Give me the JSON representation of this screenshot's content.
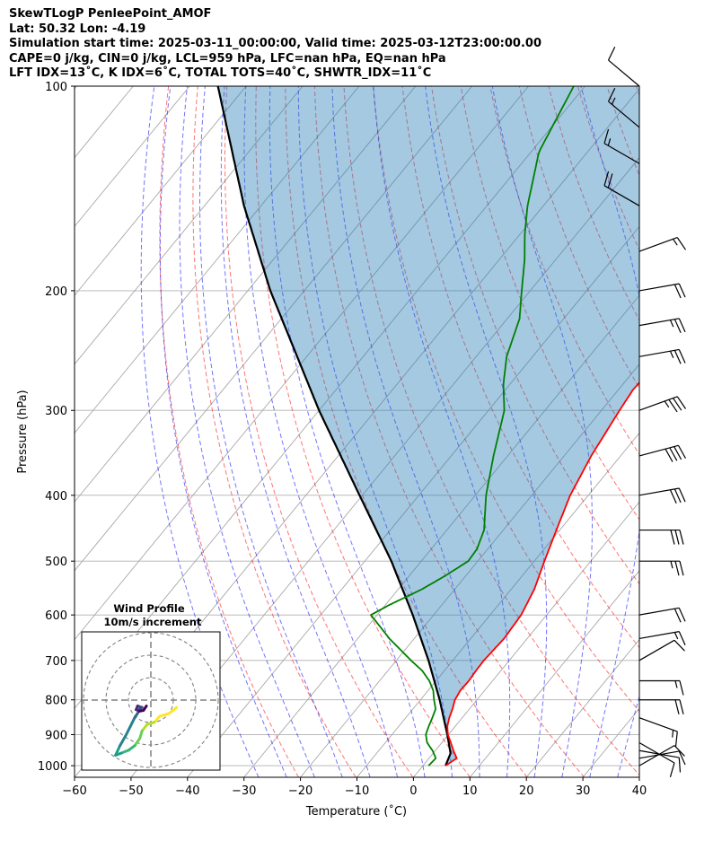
{
  "header": {
    "line1": "SkewTLogP PenleePoint_AMOF",
    "line2": "Lat: 50.32   Lon: -4.19",
    "line3": "Simulation start time: 2025-03-11_00:00:00, Valid time: 2025-03-12T23:00:00.00",
    "line4": "CAPE=0 j/kg, CIN=0 j/kg, LCL=959 hPa, LFC=nan hPa, EQ=nan hPa",
    "line5": "LFT IDX=13$^\\circ$C, K IDX=6$^\\circ$C, TOTAL TOTS=40$^\\circ$C, SHWTR_IDX=11$^\\circ$C"
  },
  "header_display": {
    "line5": "LFT IDX=13˚C, K IDX=6˚C, TOTAL TOTS=40˚C, SHWTR_IDX=11˚C"
  },
  "chart_data": {
    "type": "skew-t log-p",
    "xlabel": "Temperature (˚C)",
    "ylabel": "Pressure (hPa)",
    "xlim": [
      -60,
      40
    ],
    "ylim": [
      1040,
      100
    ],
    "x_ticks": [
      "−60",
      "−50",
      "−40",
      "−30",
      "−20",
      "−10",
      "0",
      "10",
      "20",
      "30",
      "40"
    ],
    "y_ticks": [
      "100",
      "200",
      "300",
      "400",
      "500",
      "600",
      "700",
      "800",
      "900",
      "1000"
    ],
    "y_tick_values": [
      100,
      200,
      300,
      400,
      500,
      600,
      700,
      800,
      900,
      1000
    ],
    "grid": true,
    "temperature": {
      "color": "#ff0000",
      "points": [
        [
          1000,
          4.0
        ],
        [
          975,
          4.9
        ],
        [
          950,
          3.2
        ],
        [
          925,
          1.6
        ],
        [
          900,
          -0.1
        ],
        [
          875,
          -1.4
        ],
        [
          850,
          -2.3
        ],
        [
          825,
          -3.0
        ],
        [
          800,
          -3.9
        ],
        [
          775,
          -4.3
        ],
        [
          750,
          -4.2
        ],
        [
          725,
          -4.4
        ],
        [
          700,
          -4.5
        ],
        [
          650,
          -4.1
        ],
        [
          600,
          -4.5
        ],
        [
          550,
          -5.9
        ],
        [
          500,
          -8.2
        ],
        [
          450,
          -10.6
        ],
        [
          400,
          -13.2
        ],
        [
          350,
          -15.2
        ],
        [
          300,
          -16.8
        ],
        [
          280,
          -17.4
        ],
        [
          250,
          -17.0
        ],
        [
          220,
          -17.2
        ],
        [
          200,
          -17.5
        ],
        [
          180,
          -17.2
        ],
        [
          150,
          -16.5
        ],
        [
          125,
          -14.8
        ],
        [
          100,
          -13.5
        ]
      ]
    },
    "dewpoint": {
      "color": "#008000",
      "points": [
        [
          1000,
          1.0
        ],
        [
          975,
          1.2
        ],
        [
          950,
          -0.5
        ],
        [
          925,
          -2.6
        ],
        [
          900,
          -4.0
        ],
        [
          875,
          -4.7
        ],
        [
          850,
          -5.3
        ],
        [
          825,
          -6.0
        ],
        [
          800,
          -7.6
        ],
        [
          775,
          -9.1
        ],
        [
          750,
          -11.2
        ],
        [
          725,
          -13.9
        ],
        [
          700,
          -17.4
        ],
        [
          650,
          -24.4
        ],
        [
          600,
          -31.1
        ],
        [
          580,
          -29.3
        ],
        [
          550,
          -25.8
        ],
        [
          525,
          -23.6
        ],
        [
          500,
          -21.7
        ],
        [
          480,
          -21.9
        ],
        [
          450,
          -23.4
        ],
        [
          400,
          -28.1
        ],
        [
          350,
          -32.5
        ],
        [
          300,
          -37.2
        ],
        [
          275,
          -41.1
        ],
        [
          250,
          -44.6
        ],
        [
          220,
          -47.8
        ],
        [
          200,
          -51.5
        ],
        [
          180,
          -55.5
        ],
        [
          165,
          -59.2
        ],
        [
          150,
          -62.8
        ],
        [
          125,
          -68.6
        ],
        [
          100,
          -72.0
        ]
      ]
    },
    "parcel": {
      "color": "#000000",
      "points": [
        [
          1000,
          4.0
        ],
        [
          959,
          3.1
        ],
        [
          900,
          -0.2
        ],
        [
          800,
          -6.6
        ],
        [
          700,
          -14.3
        ],
        [
          600,
          -23.7
        ],
        [
          500,
          -35.3
        ],
        [
          400,
          -50.5
        ],
        [
          300,
          -70.0
        ],
        [
          200,
          -96.0
        ],
        [
          150,
          -113.0
        ],
        [
          100,
          -135.0
        ]
      ]
    },
    "cape_cin_shading": {
      "color": "#1f77b4",
      "alpha": 0.4
    },
    "dry_adiabats": {
      "color": "#ff0000",
      "style": "dashed",
      "theta_K": [
        250,
        260,
        270,
        280,
        290,
        300,
        310,
        320,
        330,
        340,
        350,
        360,
        370,
        380,
        390,
        400,
        410,
        420,
        430,
        440,
        450,
        460,
        470,
        480,
        490,
        500
      ]
    },
    "moist_adiabats": {
      "color": "#0000ff",
      "style": "dashed",
      "start_C_at_1000hPa": [
        -30,
        -25,
        -20,
        -15,
        -10,
        -5,
        0,
        5,
        10,
        15,
        20,
        25,
        30,
        35
      ]
    },
    "isotherms": {
      "color": "#808080",
      "step_C": 10
    },
    "reference_curve": {
      "color": "#800080",
      "note": ""
    },
    "wind_barbs": [
      {
        "p": 1000,
        "speed_kt": 10,
        "dir": 60
      },
      {
        "p": 975,
        "speed_kt": 10,
        "dir": 80
      },
      {
        "p": 950,
        "speed_kt": 10,
        "dir": 100
      },
      {
        "p": 925,
        "speed_kt": 10,
        "dir": 120
      },
      {
        "p": 850,
        "speed_kt": 15,
        "dir": 110
      },
      {
        "p": 800,
        "speed_kt": 20,
        "dir": 90
      },
      {
        "p": 750,
        "speed_kt": 15,
        "dir": 90
      },
      {
        "p": 700,
        "speed_kt": 10,
        "dir": 60
      },
      {
        "p": 650,
        "speed_kt": 15,
        "dir": 80
      },
      {
        "p": 600,
        "speed_kt": 20,
        "dir": 80
      },
      {
        "p": 500,
        "speed_kt": 25,
        "dir": 90
      },
      {
        "p": 450,
        "speed_kt": 30,
        "dir": 90
      },
      {
        "p": 400,
        "speed_kt": 30,
        "dir": 80
      },
      {
        "p": 350,
        "speed_kt": 40,
        "dir": 75
      },
      {
        "p": 300,
        "speed_kt": 35,
        "dir": 70
      },
      {
        "p": 250,
        "speed_kt": 25,
        "dir": 80
      },
      {
        "p": 225,
        "speed_kt": 25,
        "dir": 80
      },
      {
        "p": 200,
        "speed_kt": 20,
        "dir": 80
      },
      {
        "p": 175,
        "speed_kt": 15,
        "dir": 70
      },
      {
        "p": 150,
        "speed_kt": 20,
        "dir": 300
      },
      {
        "p": 130,
        "speed_kt": 15,
        "dir": 300
      },
      {
        "p": 115,
        "speed_kt": 15,
        "dir": 310
      },
      {
        "p": 100,
        "speed_kt": 10,
        "dir": 310
      }
    ],
    "hodograph": {
      "title": "Wind Profile",
      "subtitle": "10m/s increment",
      "rings": 3,
      "colormap": "viridis",
      "points": [
        [
          3.5,
          -1.0
        ],
        [
          2.5,
          -1.8
        ],
        [
          1.2,
          -2.2
        ],
        [
          0.5,
          -3.0
        ],
        [
          -0.5,
          -3.3
        ],
        [
          -1.2,
          -4.2
        ],
        [
          -1.5,
          -5.2
        ],
        [
          -2.2,
          -6.2
        ],
        [
          -3.0,
          -6.8
        ],
        [
          -4.0,
          -7.2
        ],
        [
          -4.8,
          -7.5
        ],
        [
          -4.2,
          -6.2
        ],
        [
          -3.4,
          -4.8
        ],
        [
          -2.8,
          -3.6
        ],
        [
          -2.2,
          -2.4
        ],
        [
          -1.8,
          -1.8
        ],
        [
          -1.5,
          -1.2
        ],
        [
          -1.2,
          -1.0
        ],
        [
          -1.8,
          -0.8
        ],
        [
          -2.0,
          -1.3
        ],
        [
          -1.5,
          -1.5
        ],
        [
          -1.0,
          -1.4
        ],
        [
          -0.6,
          -0.8
        ]
      ]
    }
  }
}
